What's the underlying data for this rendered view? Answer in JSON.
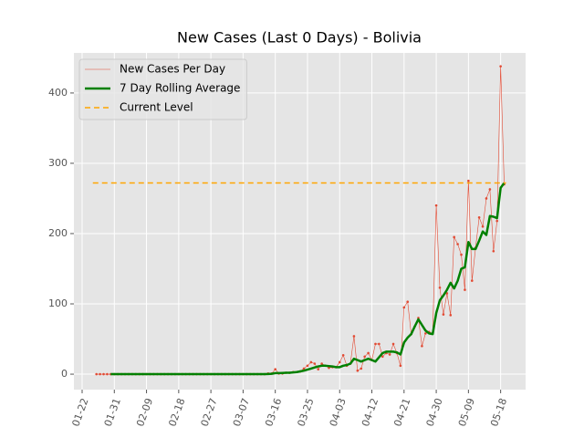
{
  "chart_data": {
    "type": "line",
    "title": "New Cases (Last 0 Days) - Bolivia",
    "categories": [
      "01-22",
      "01-23",
      "01-24",
      "01-25",
      "01-26",
      "01-27",
      "01-28",
      "01-29",
      "01-30",
      "01-31",
      "02-01",
      "02-02",
      "02-03",
      "02-04",
      "02-05",
      "02-06",
      "02-07",
      "02-08",
      "02-09",
      "02-10",
      "02-11",
      "02-12",
      "02-13",
      "02-14",
      "02-15",
      "02-16",
      "02-17",
      "02-18",
      "02-19",
      "02-20",
      "02-21",
      "02-22",
      "02-23",
      "02-24",
      "02-25",
      "02-26",
      "02-27",
      "02-28",
      "02-29",
      "03-01",
      "03-02",
      "03-03",
      "03-04",
      "03-05",
      "03-06",
      "03-07",
      "03-08",
      "03-09",
      "03-10",
      "03-11",
      "03-12",
      "03-13",
      "03-14",
      "03-15",
      "03-16",
      "03-17",
      "03-18",
      "03-19",
      "03-20",
      "03-21",
      "03-22",
      "03-23",
      "03-24",
      "03-25",
      "03-26",
      "03-27",
      "03-28",
      "03-29",
      "03-30",
      "03-31",
      "04-01",
      "04-02",
      "04-03",
      "04-04",
      "04-05",
      "04-06",
      "04-07",
      "04-08",
      "04-09",
      "04-10",
      "04-11",
      "04-12",
      "04-13",
      "04-14",
      "04-15",
      "04-16",
      "04-17",
      "04-18",
      "04-19",
      "04-20",
      "04-21",
      "04-22",
      "04-23",
      "04-24",
      "04-25",
      "04-26",
      "04-27",
      "04-28",
      "04-29",
      "04-30",
      "05-01",
      "05-02",
      "05-03",
      "05-04",
      "05-05",
      "05-06",
      "05-07",
      "05-08",
      "05-09",
      "05-10",
      "05-11",
      "05-12",
      "05-13",
      "05-14",
      "05-15",
      "05-16",
      "05-17",
      "05-18",
      "05-19"
    ],
    "series": [
      {
        "name": "New Cases Per Day",
        "color": "#e24a33",
        "style": "thin-dots",
        "values": [
          null,
          null,
          null,
          null,
          0,
          0,
          0,
          0,
          0,
          0,
          0,
          0,
          0,
          0,
          0,
          0,
          0,
          0,
          0,
          0,
          0,
          0,
          0,
          0,
          0,
          0,
          0,
          0,
          0,
          0,
          0,
          0,
          0,
          0,
          0,
          0,
          0,
          0,
          0,
          0,
          0,
          0,
          0,
          0,
          0,
          0,
          0,
          0,
          0,
          0,
          0,
          0,
          1,
          1,
          7,
          1,
          1,
          2,
          2,
          3,
          3,
          4,
          8,
          12,
          17,
          15,
          7,
          15,
          12,
          9,
          10,
          10,
          17,
          27,
          12,
          15,
          54,
          5,
          8,
          25,
          30,
          20,
          43,
          43,
          25,
          30,
          28,
          43,
          30,
          12,
          95,
          103,
          57,
          68,
          80,
          40,
          58,
          60,
          58,
          240,
          123,
          85,
          115,
          84,
          195,
          185,
          170,
          120,
          275,
          133,
          180,
          223,
          210,
          250,
          263,
          175,
          218,
          438,
          270
        ]
      },
      {
        "name": "7 Day Rolling Average",
        "color": "#008000",
        "style": "thick",
        "values": [
          null,
          null,
          null,
          null,
          null,
          null,
          null,
          null,
          0,
          0,
          0,
          0,
          0,
          0,
          0,
          0,
          0,
          0,
          0,
          0,
          0,
          0,
          0,
          0,
          0,
          0,
          0,
          0,
          0,
          0,
          0,
          0,
          0,
          0,
          0,
          0,
          0,
          0,
          0,
          0,
          0,
          0,
          0,
          0,
          0,
          0,
          0,
          0,
          0,
          0,
          0,
          0,
          0.3,
          0.6,
          1.5,
          1.5,
          1.7,
          2,
          2,
          2.5,
          3,
          4,
          5,
          6.5,
          8,
          9.5,
          11,
          12,
          12,
          11.5,
          11,
          10,
          10,
          12,
          13,
          15,
          22,
          20,
          18,
          20,
          22,
          20,
          18,
          24,
          30,
          32,
          32,
          32,
          31,
          28,
          45,
          52,
          57,
          68,
          78,
          70,
          62,
          58,
          57,
          87,
          105,
          112,
          120,
          130,
          122,
          133,
          150,
          152,
          188,
          178,
          178,
          190,
          203,
          198,
          225,
          224,
          222,
          265,
          272
        ]
      },
      {
        "name": "Current Level",
        "color": "#ffa500",
        "style": "dashed",
        "value": 272
      }
    ],
    "ylim": [
      -22,
      457
    ],
    "yticks": [
      0,
      100,
      200,
      300,
      400
    ],
    "xticks": [
      "01-22",
      "01-31",
      "02-09",
      "02-18",
      "02-27",
      "03-07",
      "03-16",
      "03-25",
      "04-03",
      "04-12",
      "04-21",
      "04-30",
      "05-09",
      "05-18"
    ],
    "grid": true,
    "legend": "upper left"
  }
}
